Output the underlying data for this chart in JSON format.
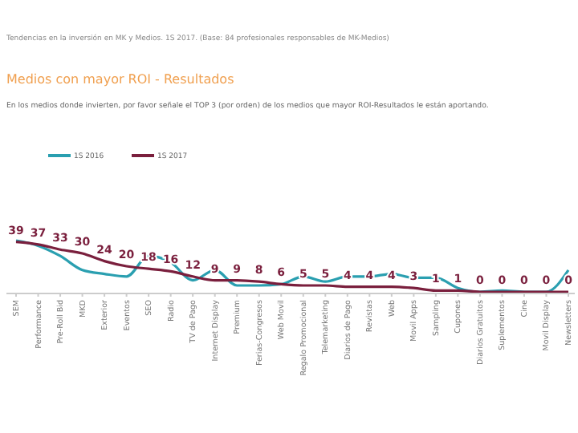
{
  "chart_data": {
    "type": "line",
    "title": "Medios con mayor ROI - Resultados",
    "subtitle": "Tendencias en la inversión en MK y Medios. 1S 2017. (Base: 84 profesionales responsables de MK-Medios)",
    "annotations": [
      "En los medios donde invierten, por favor señale el TOP 3 (por orden) de los medios que mayor ROI-Resultados le están aportando."
    ],
    "categories": [
      "SEM",
      "Performance",
      "Pre-Roll Bid",
      "MKD",
      "Exterior",
      "Eventos",
      "SEO",
      "Radio",
      "TV de Pago",
      "Internet Display",
      "Premium",
      "Ferias-Congresos",
      "Web Movil",
      "Regalo Promocional",
      "Telemarketing",
      "Diarios de Pago",
      "Revistas",
      "Web",
      "Movil Apps",
      "Sampling",
      "Cupones",
      "Diarios Gratuitos",
      "Suplementos",
      "Cine",
      "Movil Display",
      "Newsletters"
    ],
    "series": [
      {
        "name": "1S 2016",
        "color": "#2a9fb0",
        "values": [
          40,
          36,
          28,
          17,
          14,
          12,
          28,
          23,
          9,
          17,
          5,
          5,
          6,
          12,
          8,
          12,
          12,
          14,
          11,
          11,
          3,
          0,
          1,
          0,
          0,
          17
        ]
      },
      {
        "name": "1S 2017",
        "color": "#7a1f3d",
        "data_labels": true,
        "values": [
          39,
          37,
          33,
          30,
          24,
          20,
          18,
          16,
          12,
          9,
          9,
          8,
          6,
          5,
          5,
          4,
          4,
          4,
          3,
          1,
          1,
          0,
          0,
          0,
          0,
          0
        ]
      }
    ],
    "legend": "top left",
    "marker": "none",
    "line_style": "solid"
  }
}
